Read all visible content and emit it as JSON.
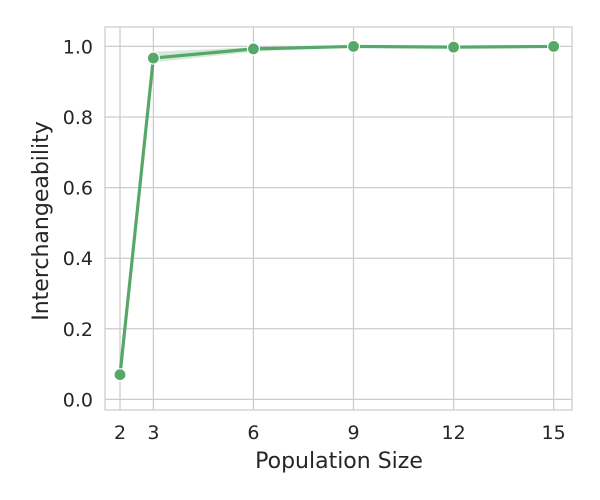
{
  "chart_data": {
    "type": "line",
    "title": "",
    "xlabel": "Population Size",
    "ylabel": "Interchangeability",
    "x": [
      2,
      3,
      6,
      9,
      12,
      15
    ],
    "xticks": [
      2,
      3,
      6,
      9,
      12,
      15
    ],
    "xtick_labels": [
      "2",
      "3",
      "6",
      "9",
      "12",
      "15"
    ],
    "yticks": [
      0.0,
      0.2,
      0.4,
      0.6,
      0.8,
      1.0
    ],
    "ytick_labels": [
      "0.0",
      "0.2",
      "0.4",
      "0.6",
      "0.8",
      "1.0"
    ],
    "xlim": [
      1.55,
      15.55
    ],
    "ylim": [
      -0.03,
      1.055
    ],
    "grid": true,
    "series": [
      {
        "values": [
          0.07,
          0.967,
          0.993,
          1.0,
          0.998,
          1.0
        ],
        "ci_lower": [
          0.07,
          0.955,
          0.985,
          0.997,
          0.994,
          0.997
        ],
        "ci_upper": [
          0.07,
          0.985,
          0.998,
          1.0,
          1.0,
          1.0
        ],
        "color": "#55a868",
        "marker": "circle"
      }
    ]
  }
}
